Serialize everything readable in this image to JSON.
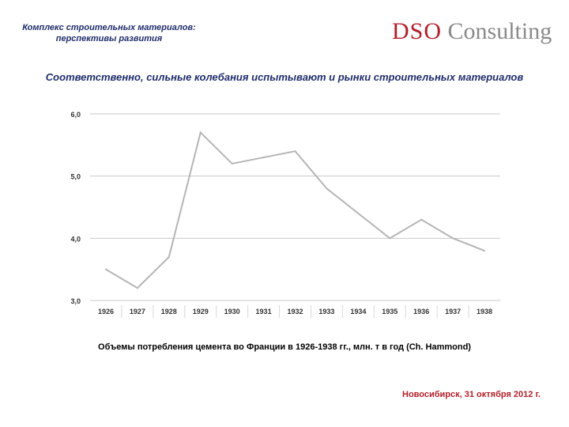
{
  "header": {
    "line1": "Комплекс строительных материалов:",
    "line2": "перспективы развития"
  },
  "logo": {
    "brand": "DSO",
    "suffix": "Consulting",
    "brand_color": "#b0202a",
    "suffix_color": "#8a8a8a"
  },
  "slide_title": "Соответственно, сильные колебания испытывают и рынки строительных материалов",
  "caption": "Объемы потребления цемента во Франции в 1926-1938 гг., млн. т в год (Ch. Hammond)",
  "footer": {
    "date": "Новосибирск, 31 октября 2012 г."
  },
  "colors": {
    "text_dark_blue": "#1f2d6b",
    "accent_red": "#b0202a",
    "line_gray": "#b5b5b5"
  },
  "chart_data": {
    "type": "line",
    "categories": [
      "1926",
      "1927",
      "1928",
      "1929",
      "1930",
      "1931",
      "1932",
      "1933",
      "1934",
      "1935",
      "1936",
      "1937",
      "1938"
    ],
    "values": [
      3.5,
      3.2,
      3.7,
      5.7,
      5.2,
      5.3,
      5.4,
      4.8,
      4.4,
      4.0,
      4.3,
      4.0,
      3.8
    ],
    "yticks": [
      "3,0",
      "4,0",
      "5,0",
      "6,0"
    ],
    "ylim": [
      3.0,
      6.0
    ],
    "grid": true
  }
}
